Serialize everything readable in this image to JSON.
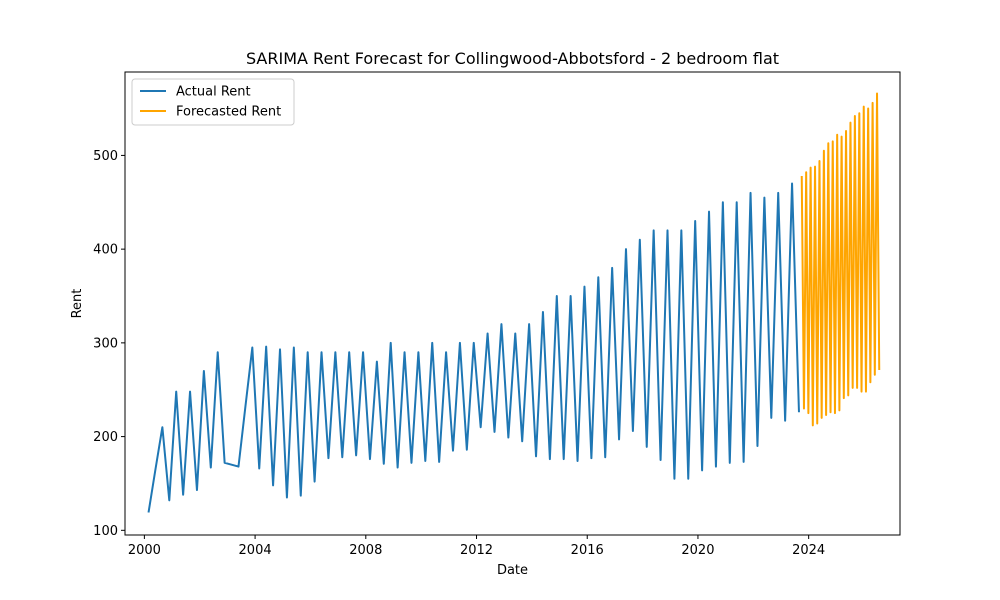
{
  "chart_data": {
    "type": "line",
    "title": "SARIMA Rent Forecast for Collingwood-Abbotsford - 2 bedroom flat",
    "xlabel": "Date",
    "ylabel": "Rent",
    "xlim": [
      1999.3,
      2027.3
    ],
    "ylim": [
      95,
      589
    ],
    "xticks": [
      2000,
      2004,
      2008,
      2012,
      2016,
      2020,
      2024
    ],
    "yticks": [
      100,
      200,
      300,
      400,
      500
    ],
    "grid": false,
    "legend_position": "top-left",
    "series": [
      {
        "name": "Actual Rent",
        "color": "#1f77b4",
        "points": [
          [
            2000.15,
            119
          ],
          [
            2000.4,
            165
          ],
          [
            2000.65,
            210
          ],
          [
            2000.9,
            132
          ],
          [
            2001.15,
            248
          ],
          [
            2001.4,
            138
          ],
          [
            2001.65,
            248
          ],
          [
            2001.9,
            143
          ],
          [
            2002.15,
            270
          ],
          [
            2002.4,
            167
          ],
          [
            2002.65,
            290
          ],
          [
            2002.9,
            172
          ],
          [
            2003.4,
            168
          ],
          [
            2003.65,
            232
          ],
          [
            2003.9,
            295
          ],
          [
            2004.15,
            166
          ],
          [
            2004.4,
            296
          ],
          [
            2004.65,
            148
          ],
          [
            2004.9,
            293
          ],
          [
            2005.15,
            135
          ],
          [
            2005.4,
            295
          ],
          [
            2005.65,
            137
          ],
          [
            2005.9,
            290
          ],
          [
            2006.15,
            152
          ],
          [
            2006.4,
            290
          ],
          [
            2006.65,
            177
          ],
          [
            2006.9,
            290
          ],
          [
            2007.15,
            178
          ],
          [
            2007.4,
            290
          ],
          [
            2007.65,
            180
          ],
          [
            2007.9,
            290
          ],
          [
            2008.15,
            176
          ],
          [
            2008.4,
            280
          ],
          [
            2008.65,
            171
          ],
          [
            2008.9,
            300
          ],
          [
            2009.15,
            167
          ],
          [
            2009.4,
            290
          ],
          [
            2009.65,
            172
          ],
          [
            2009.9,
            290
          ],
          [
            2010.15,
            174
          ],
          [
            2010.4,
            300
          ],
          [
            2010.65,
            173
          ],
          [
            2010.9,
            290
          ],
          [
            2011.15,
            185
          ],
          [
            2011.4,
            300
          ],
          [
            2011.65,
            186
          ],
          [
            2011.9,
            300
          ],
          [
            2012.15,
            210
          ],
          [
            2012.4,
            310
          ],
          [
            2012.65,
            205
          ],
          [
            2012.9,
            320
          ],
          [
            2013.15,
            199
          ],
          [
            2013.4,
            310
          ],
          [
            2013.65,
            195
          ],
          [
            2013.9,
            320
          ],
          [
            2014.15,
            179
          ],
          [
            2014.4,
            333
          ],
          [
            2014.65,
            176
          ],
          [
            2014.9,
            350
          ],
          [
            2015.15,
            176
          ],
          [
            2015.4,
            350
          ],
          [
            2015.65,
            174
          ],
          [
            2015.9,
            360
          ],
          [
            2016.15,
            177
          ],
          [
            2016.4,
            370
          ],
          [
            2016.65,
            178
          ],
          [
            2016.9,
            380
          ],
          [
            2017.15,
            197
          ],
          [
            2017.4,
            400
          ],
          [
            2017.65,
            206
          ],
          [
            2017.9,
            410
          ],
          [
            2018.15,
            189
          ],
          [
            2018.4,
            420
          ],
          [
            2018.65,
            175
          ],
          [
            2018.9,
            420
          ],
          [
            2019.15,
            155
          ],
          [
            2019.4,
            420
          ],
          [
            2019.65,
            155
          ],
          [
            2019.9,
            430
          ],
          [
            2020.15,
            164
          ],
          [
            2020.4,
            440
          ],
          [
            2020.65,
            168
          ],
          [
            2020.9,
            450
          ],
          [
            2021.15,
            172
          ],
          [
            2021.4,
            450
          ],
          [
            2021.65,
            173
          ],
          [
            2021.9,
            460
          ],
          [
            2022.15,
            190
          ],
          [
            2022.4,
            455
          ],
          [
            2022.65,
            220
          ],
          [
            2022.9,
            460
          ],
          [
            2023.15,
            217
          ],
          [
            2023.4,
            470
          ],
          [
            2023.65,
            226
          ]
        ]
      },
      {
        "name": "Forecasted Rent",
        "color": "#ffa500",
        "points": [
          [
            2023.75,
            478
          ],
          [
            2023.83,
            230
          ],
          [
            2023.91,
            482
          ],
          [
            2023.99,
            225
          ],
          [
            2024.07,
            487
          ],
          [
            2024.15,
            212
          ],
          [
            2024.23,
            488
          ],
          [
            2024.31,
            214
          ],
          [
            2024.39,
            494
          ],
          [
            2024.47,
            220
          ],
          [
            2024.55,
            505
          ],
          [
            2024.63,
            223
          ],
          [
            2024.71,
            513
          ],
          [
            2024.79,
            226
          ],
          [
            2024.87,
            515
          ],
          [
            2024.95,
            225
          ],
          [
            2025.03,
            522
          ],
          [
            2025.11,
            228
          ],
          [
            2025.19,
            520
          ],
          [
            2025.27,
            241
          ],
          [
            2025.35,
            526
          ],
          [
            2025.43,
            244
          ],
          [
            2025.51,
            535
          ],
          [
            2025.59,
            252
          ],
          [
            2025.67,
            542
          ],
          [
            2025.75,
            252
          ],
          [
            2025.83,
            545
          ],
          [
            2025.91,
            248
          ],
          [
            2025.99,
            552
          ],
          [
            2026.07,
            248
          ],
          [
            2026.15,
            550
          ],
          [
            2026.23,
            258
          ],
          [
            2026.31,
            556
          ],
          [
            2026.39,
            266
          ],
          [
            2026.47,
            566
          ],
          [
            2026.55,
            271
          ]
        ]
      }
    ]
  }
}
